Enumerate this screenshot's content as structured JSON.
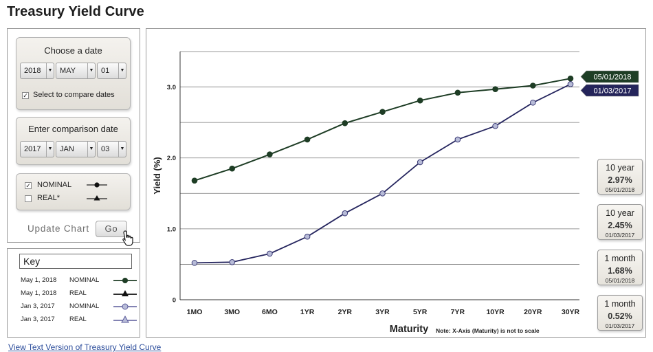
{
  "title": "Treasury Yield Curve",
  "controls": {
    "choose_date": {
      "label": "Choose a date",
      "year": "2018",
      "month": "MAY",
      "day": "01",
      "compare_label": "Select to compare dates",
      "compare_checked": "✓"
    },
    "comparison_date": {
      "label": "Enter comparison date",
      "year": "2017",
      "month": "JAN",
      "day": "03"
    },
    "series_toggle": {
      "nominal_label": "NOMINAL",
      "nominal_checked": "✓",
      "real_label": "REAL*",
      "real_checked": ""
    },
    "update_label": "Update Chart",
    "go_label": "Go"
  },
  "key": {
    "title": "Key",
    "rows": [
      {
        "date": "May 1, 2018",
        "type": "NOMINAL",
        "color": "#1e3d25",
        "marker": "circle"
      },
      {
        "date": "May 1, 2018",
        "type": "REAL",
        "color": "#111111",
        "marker": "triangle"
      },
      {
        "date": "Jan 3, 2017",
        "type": "NOMINAL",
        "color": "#5a5a9a",
        "marker": "circle"
      },
      {
        "date": "Jan 3, 2017",
        "type": "REAL",
        "color": "#5a5a9a",
        "marker": "triangle"
      }
    ]
  },
  "side_boxes": [
    {
      "term": "10 year",
      "value": "2.97%",
      "date": "05/01/2018"
    },
    {
      "term": "10 year",
      "value": "2.45%",
      "date": "01/03/2017"
    },
    {
      "term": "1 month",
      "value": "1.68%",
      "date": "05/01/2018"
    },
    {
      "term": "1 month",
      "value": "0.52%",
      "date": "01/03/2017"
    }
  ],
  "chart_data": {
    "type": "line",
    "xlabel": "Maturity",
    "ylabel": "Yield (%)",
    "note": "Note: X-Axis (Maturity) is not to scale",
    "categories": [
      "1MO",
      "3MO",
      "6MO",
      "1YR",
      "2YR",
      "3YR",
      "5YR",
      "7YR",
      "10YR",
      "20YR",
      "30YR"
    ],
    "yticks": [
      "0",
      "1.0",
      "2.0",
      "3.0"
    ],
    "ylim": [
      0,
      3.5
    ],
    "grid": true,
    "series": [
      {
        "name": "05/01/2018",
        "color": "#1e3d25",
        "values": [
          1.68,
          1.85,
          2.05,
          2.26,
          2.49,
          2.65,
          2.81,
          2.92,
          2.97,
          3.02,
          3.12
        ]
      },
      {
        "name": "01/03/2017",
        "color": "#26265f",
        "values": [
          0.52,
          0.53,
          0.65,
          0.89,
          1.22,
          1.5,
          1.94,
          2.26,
          2.45,
          2.78,
          3.04
        ]
      }
    ]
  },
  "footer_link": "View Text Version of Treasury Yield Curve"
}
